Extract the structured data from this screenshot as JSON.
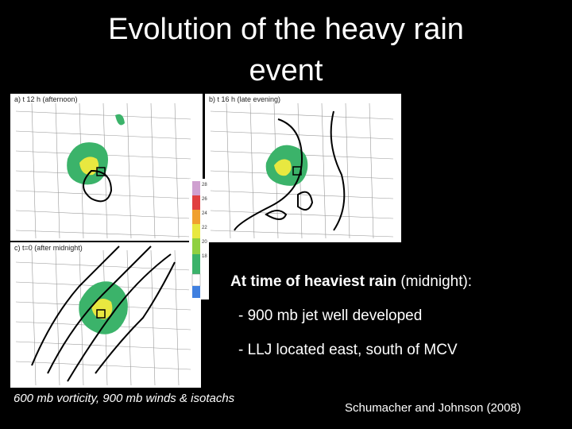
{
  "slide": {
    "title_line1": "Evolution of the heavy rain",
    "title_line2": "event",
    "panels": [
      "a)  t  12 h  (afternoon)",
      "b)  t  16 h  (late evening)",
      "c)  t=0  (after midnight)"
    ],
    "colorbar_labels": [
      "28",
      "26",
      "24",
      "22",
      "20",
      "18"
    ],
    "heading_bold": "At time of heaviest rain",
    "heading_rest": " (midnight):",
    "bullets": [
      "- 900 mb jet well developed",
      "- LLJ located east, south of MCV"
    ],
    "caption": "600 mb vorticity, 900 mb winds & isotachs",
    "credit": "Schumacher and Johnson (2008)"
  }
}
